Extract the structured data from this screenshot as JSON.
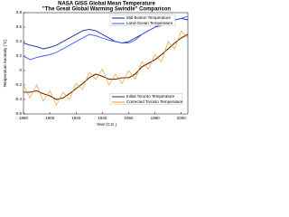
{
  "chart_data": {
    "type": "line",
    "title": "NASA GISS Global Mean Temperature",
    "subtitle": "\"The Great Global Warming Swindle\" Comparison",
    "x_label": "Year (C.E.)",
    "y_label": "Temperature Anomaly (°C)",
    "x": [
      1880,
      1885,
      1890,
      1895,
      1900,
      1905,
      1910,
      1915,
      1920,
      1925,
      1930,
      1935,
      1940,
      1945,
      1950,
      1955,
      1960,
      1965,
      1970,
      1975,
      1980,
      1985,
      1990,
      1995,
      2000,
      2005
    ],
    "series": [
      {
        "name": "Mid Boston Temperature",
        "color": "#1a237e",
        "values": [
          0.38,
          0.35,
          0.33,
          0.3,
          0.32,
          0.35,
          0.4,
          0.45,
          0.5,
          0.55,
          0.57,
          0.55,
          0.5,
          0.45,
          0.4,
          0.38,
          0.4,
          0.45,
          0.5,
          0.55,
          0.6,
          0.65,
          0.68,
          0.7,
          0.72,
          0.7
        ]
      },
      {
        "name": "Land-Ocean Temperature",
        "color": "#3355ff",
        "values": [
          0.2,
          0.15,
          0.18,
          0.2,
          0.22,
          0.25,
          0.3,
          0.35,
          0.4,
          0.45,
          0.5,
          0.48,
          0.45,
          0.42,
          0.4,
          0.38,
          0.38,
          0.42,
          0.5,
          0.55,
          0.6,
          0.62,
          0.65,
          0.7,
          0.72,
          0.75
        ]
      },
      {
        "name": "Initial Toronto Temperature",
        "color": "#5a2a00",
        "values": [
          -0.3,
          -0.3,
          -0.28,
          -0.32,
          -0.35,
          -0.4,
          -0.38,
          -0.32,
          -0.25,
          -0.18,
          -0.1,
          -0.05,
          -0.08,
          -0.12,
          -0.12,
          -0.1,
          -0.1,
          -0.05,
          0.05,
          0.1,
          0.15,
          0.22,
          0.3,
          0.38,
          0.45,
          0.5
        ]
      },
      {
        "name": "Corrected Toronto Temperature",
        "color": "#ff8c1a",
        "values": [
          -0.2,
          -0.38,
          -0.2,
          -0.42,
          -0.28,
          -0.48,
          -0.3,
          -0.4,
          -0.18,
          -0.26,
          -0.02,
          -0.12,
          0.02,
          -0.2,
          -0.05,
          -0.18,
          0.0,
          -0.12,
          0.12,
          0.02,
          0.22,
          0.12,
          0.4,
          0.3,
          0.55,
          0.45
        ]
      }
    ],
    "xlim": [
      1880,
      2005
    ],
    "xticks": [
      1880,
      1900,
      1920,
      1940,
      1960,
      1980,
      2000
    ],
    "ylim": [
      -0.6,
      0.8
    ],
    "yticks": [
      -0.6,
      -0.4,
      -0.2,
      0,
      0.2,
      0.4,
      0.6,
      0.8
    ]
  }
}
